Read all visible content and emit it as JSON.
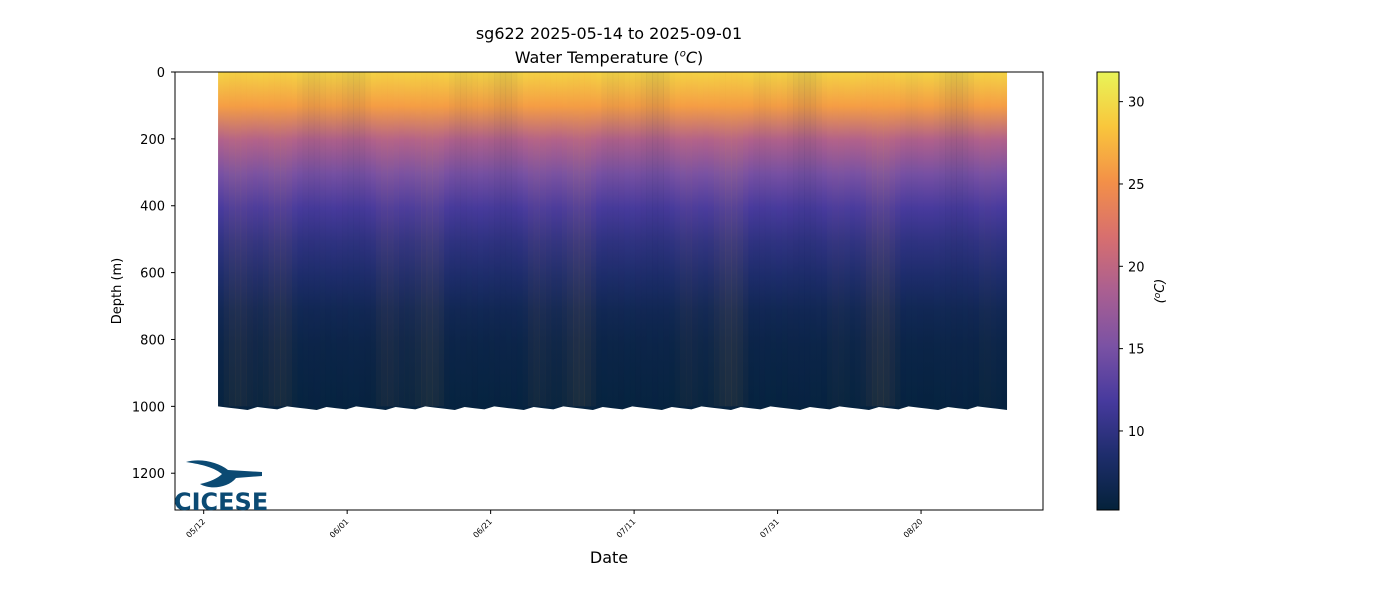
{
  "chart_data": {
    "type": "heatmap",
    "title": "sg622 2025-05-14 to 2025-09-01",
    "subtitle_prefix": "Water Temperature (",
    "subtitle_unit_sup": "o",
    "subtitle_unit": "C",
    "subtitle_suffix": ")",
    "xlabel": "Date",
    "ylabel": "Depth (m)",
    "colorbar_label_prefix": "(",
    "colorbar_label_sup": "o",
    "colorbar_label_unit": "C",
    "colorbar_label_suffix": ")",
    "x_ticks": [
      "05/12",
      "06/01",
      "06/21",
      "07/11",
      "07/31",
      "08/20"
    ],
    "y_ticks": [
      0,
      200,
      400,
      600,
      800,
      1000,
      1200
    ],
    "ylim": [
      1310,
      0
    ],
    "xlim": [
      "2025-05-08",
      "2025-09-06"
    ],
    "data_range": [
      "2025-05-14",
      "2025-09-01"
    ],
    "max_depth_m": 1000,
    "colorbar_ticks": [
      10,
      15,
      20,
      25,
      30
    ],
    "clim": [
      5.2,
      31.8
    ],
    "colormap": "thermal",
    "colormap_colors": [
      "#04223a",
      "#1e2d6c",
      "#473a9e",
      "#7b52a4",
      "#aa5f91",
      "#d86f6e",
      "#f39048",
      "#f9c63c",
      "#e8f458"
    ],
    "temperature_profile": [
      {
        "depth_m": 0,
        "temp_c": 29.5
      },
      {
        "depth_m": 100,
        "temp_c": 26
      },
      {
        "depth_m": 200,
        "temp_c": 19
      },
      {
        "depth_m": 300,
        "temp_c": 15
      },
      {
        "depth_m": 400,
        "temp_c": 12
      },
      {
        "depth_m": 500,
        "temp_c": 10
      },
      {
        "depth_m": 600,
        "temp_c": 8.5
      },
      {
        "depth_m": 700,
        "temp_c": 7
      },
      {
        "depth_m": 800,
        "temp_c": 6.2
      },
      {
        "depth_m": 1000,
        "temp_c": 5.5
      }
    ],
    "grid": false
  },
  "logo": {
    "text": "CICESE",
    "color": "#0b4a73"
  }
}
